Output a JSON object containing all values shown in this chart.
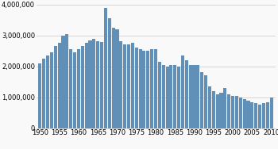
{
  "years": [
    1950,
    1951,
    1952,
    1953,
    1954,
    1955,
    1956,
    1957,
    1958,
    1959,
    1960,
    1961,
    1962,
    1963,
    1964,
    1965,
    1966,
    1967,
    1968,
    1969,
    1970,
    1971,
    1972,
    1973,
    1974,
    1975,
    1976,
    1977,
    1978,
    1979,
    1980,
    1981,
    1982,
    1983,
    1984,
    1985,
    1986,
    1987,
    1988,
    1989,
    1990,
    1991,
    1992,
    1993,
    1994,
    1995,
    1996,
    1997,
    1998,
    1999,
    2000,
    2001,
    2002,
    2003,
    2004,
    2005,
    2006,
    2007,
    2008,
    2009,
    2010
  ],
  "catches": [
    2100000,
    2250000,
    2350000,
    2450000,
    2650000,
    2750000,
    3000000,
    3050000,
    2550000,
    2450000,
    2550000,
    2650000,
    2750000,
    2850000,
    2900000,
    2800000,
    2780000,
    3900000,
    3550000,
    3250000,
    3200000,
    2800000,
    2700000,
    2700000,
    2750000,
    2600000,
    2550000,
    2500000,
    2500000,
    2550000,
    2550000,
    2150000,
    2050000,
    2000000,
    2050000,
    2050000,
    2000000,
    2350000,
    2200000,
    2050000,
    2050000,
    2050000,
    1800000,
    1700000,
    1350000,
    1200000,
    1100000,
    1150000,
    1300000,
    1100000,
    1050000,
    1050000,
    1000000,
    950000,
    900000,
    850000,
    800000,
    750000,
    800000,
    850000,
    980000
  ],
  "bar_color": "#6090b8",
  "background_color": "#f9f9f9",
  "grid_color": "#c8c8c8",
  "ylim": [
    0,
    4000000
  ],
  "yticks": [
    0,
    1000000,
    2000000,
    3000000,
    4000000
  ],
  "xticks": [
    1950,
    1955,
    1960,
    1965,
    1970,
    1975,
    1980,
    1985,
    1990,
    1995,
    2000,
    2005,
    2010
  ],
  "tick_fontsize": 6.0,
  "bar_width": 0.85,
  "xlim_left": 1949.0,
  "xlim_right": 2011.0
}
